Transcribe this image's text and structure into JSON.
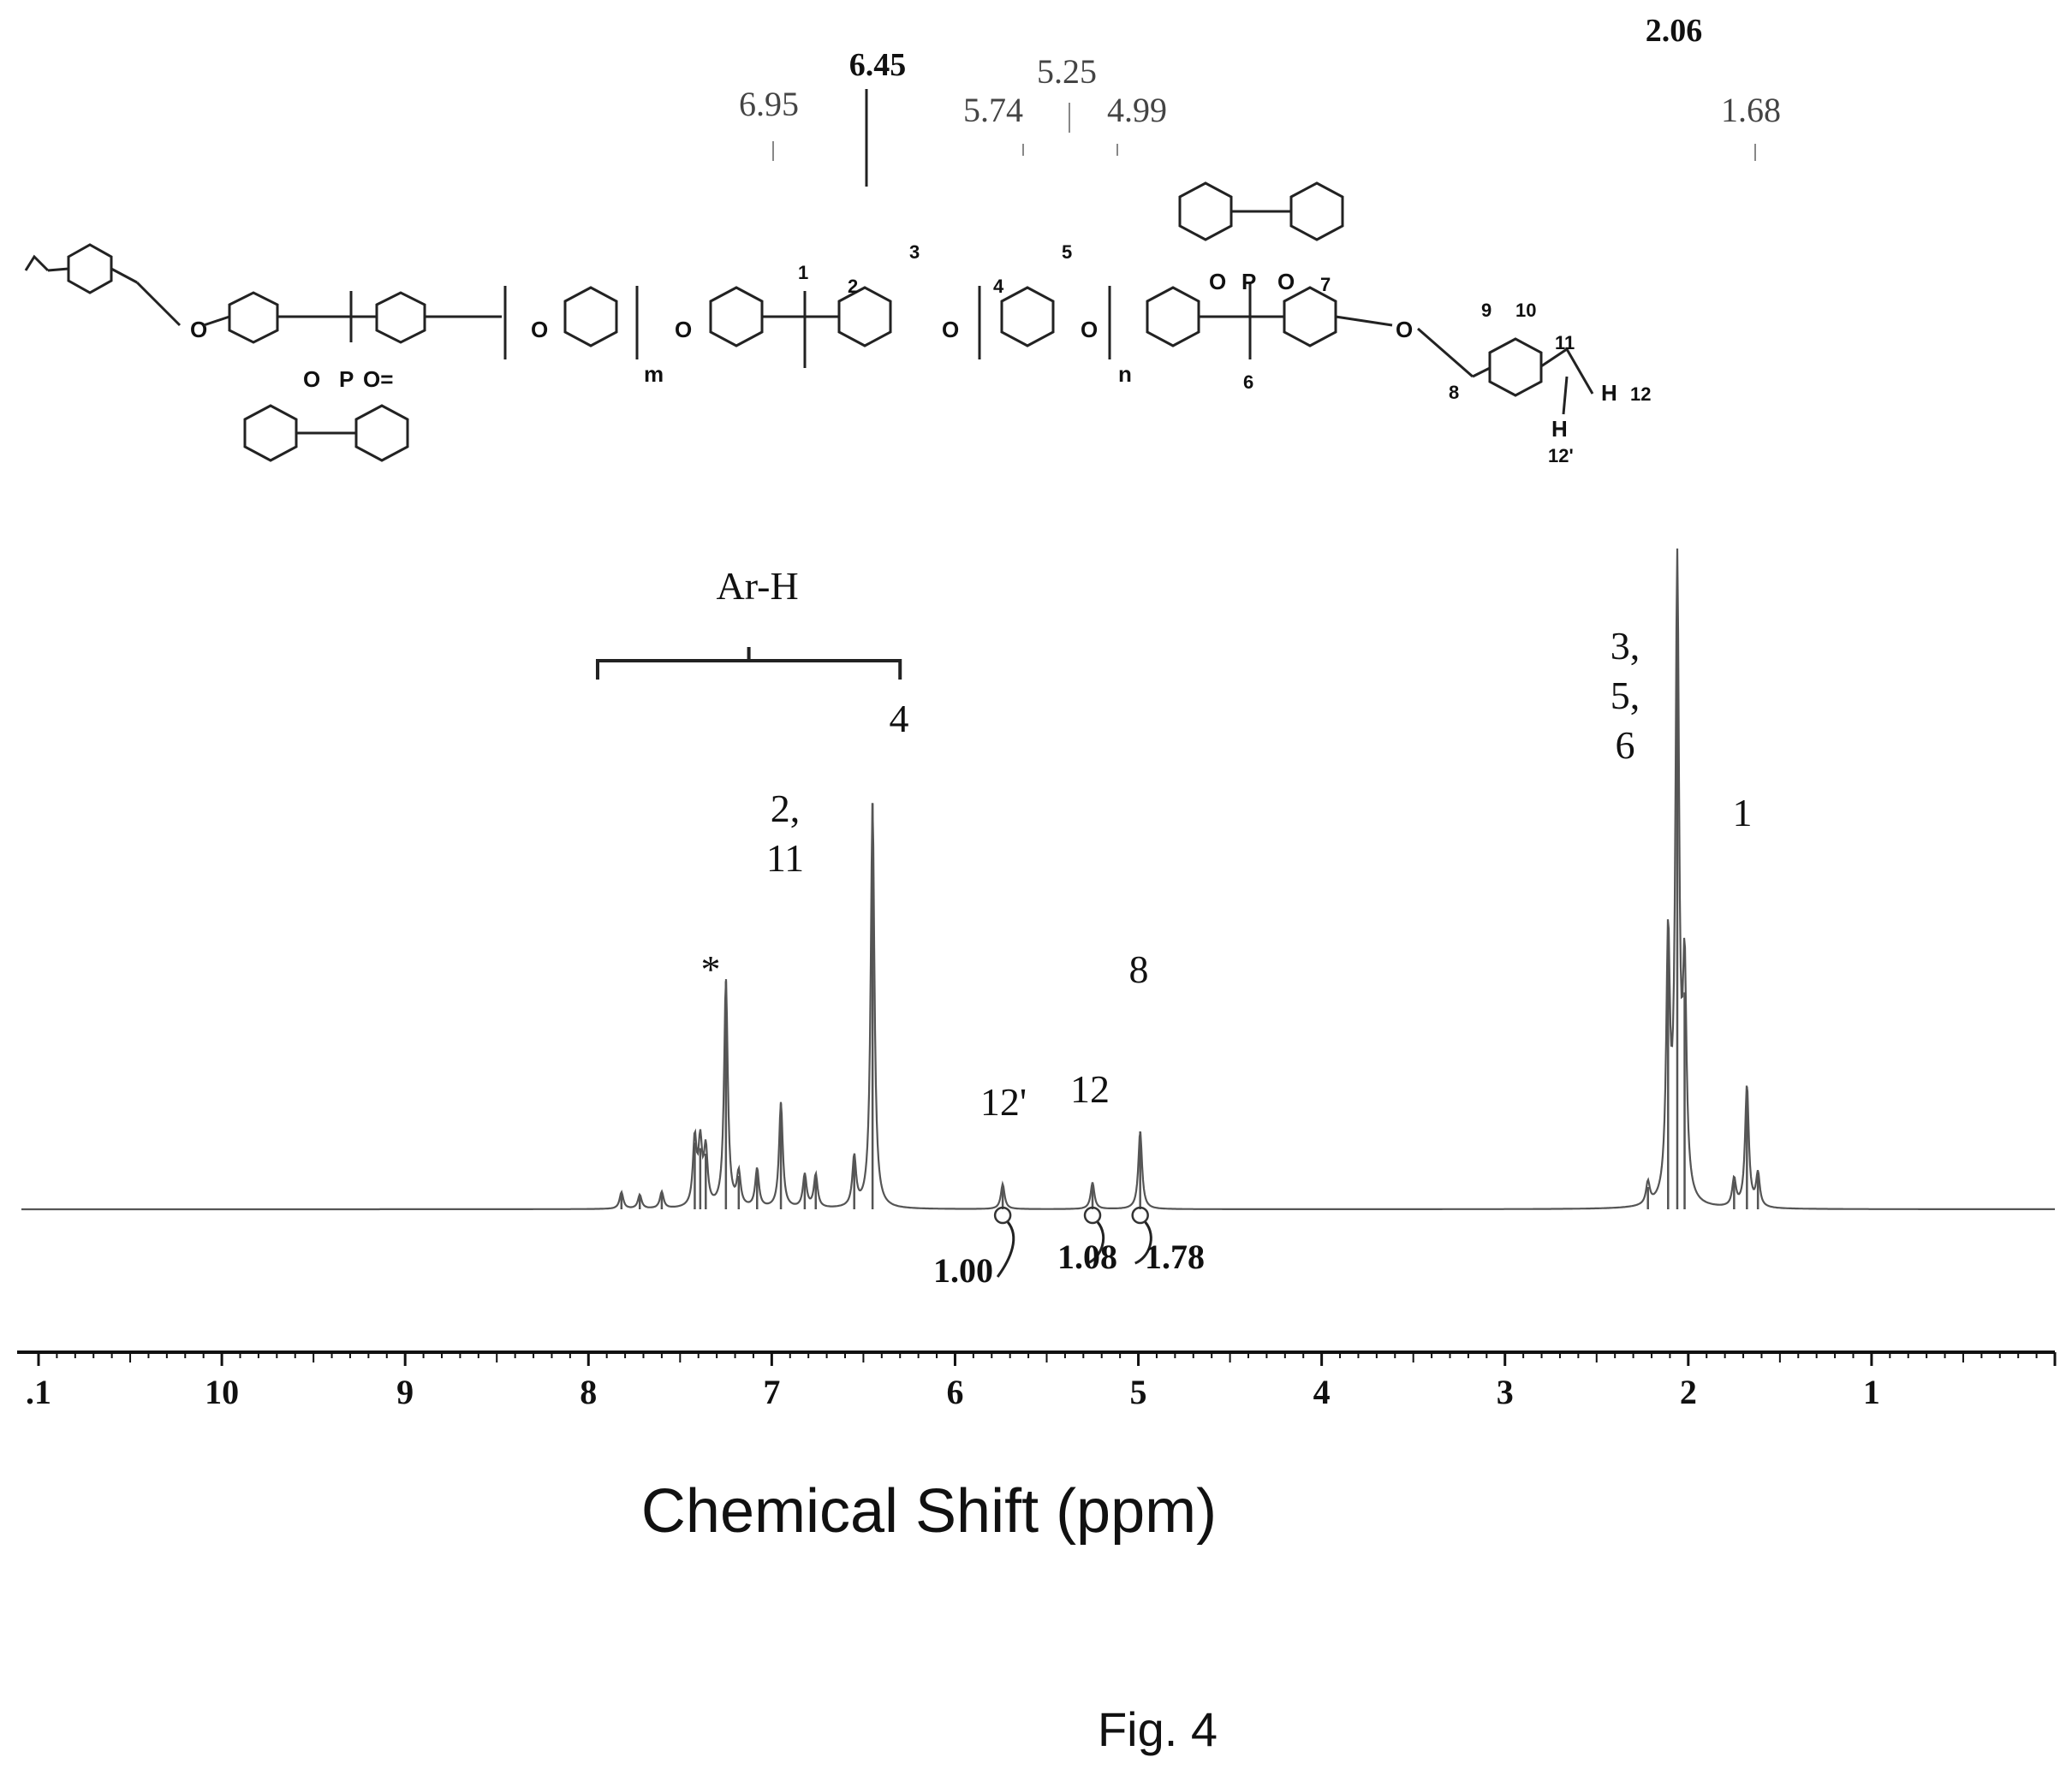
{
  "figure_label": "Fig. 4",
  "structure": {
    "position_labels": [
      "1",
      "2",
      "3",
      "4",
      "5",
      "6",
      "7",
      "8",
      "9",
      "10",
      "11",
      "12",
      "12'"
    ],
    "atom_labels": {
      "oxygen": "O",
      "phosphorus": "P",
      "hydrogen": "H",
      "carbonyl": "O=",
      "repeat_m": "m",
      "repeat_n": "n"
    }
  },
  "colors": {
    "spectrum": "#555555",
    "axis": "#111111",
    "text": "#111111"
  },
  "chart_data": {
    "type": "line",
    "xlabel": "Chemical Shift (ppm)",
    "x_reversed": true,
    "xlim": [
      11,
      0
    ],
    "x_ticks": [
      11,
      10,
      9,
      8,
      7,
      6,
      5,
      4,
      3,
      2,
      1
    ],
    "x_tick_labels": [
      ".1",
      "10",
      "9",
      "8",
      "7",
      "6",
      "5",
      "4",
      "3",
      "2",
      "1"
    ],
    "peak_top_labels": [
      {
        "ppm": 6.95,
        "label": "6.95",
        "bold": false
      },
      {
        "ppm": 6.45,
        "label": "6.45",
        "bold": true
      },
      {
        "ppm": 5.74,
        "label": "5.74",
        "bold": false
      },
      {
        "ppm": 5.25,
        "label": "5.25",
        "bold": false
      },
      {
        "ppm": 4.99,
        "label": "4.99",
        "bold": false
      },
      {
        "ppm": 2.06,
        "label": "2.06",
        "bold": true
      },
      {
        "ppm": 1.68,
        "label": "1.68",
        "bold": false
      }
    ],
    "assignments": [
      {
        "ppm": 7.25,
        "label": "*"
      },
      {
        "ppm": 6.95,
        "label": "2,\n11"
      },
      {
        "ppm": 6.3,
        "label": "4"
      },
      {
        "ppm": 5.74,
        "label": "12'"
      },
      {
        "ppm": 5.25,
        "label": "12"
      },
      {
        "ppm": 4.99,
        "label": "8"
      },
      {
        "ppm": 2.3,
        "label": "3,\n5,\n6"
      },
      {
        "ppm": 1.68,
        "label": "1"
      }
    ],
    "region_label": {
      "label": "Ar-H",
      "from_ppm": 7.95,
      "to_ppm": 6.3
    },
    "integrals": [
      {
        "ppm": 5.74,
        "label": "1.00"
      },
      {
        "ppm": 5.25,
        "label": "1.08"
      },
      {
        "ppm": 4.99,
        "label": "1.78"
      }
    ],
    "peaks": [
      {
        "ppm": 7.82,
        "height": 0.03
      },
      {
        "ppm": 7.72,
        "height": 0.025
      },
      {
        "ppm": 7.6,
        "height": 0.03
      },
      {
        "ppm": 7.42,
        "height": 0.12
      },
      {
        "ppm": 7.39,
        "height": 0.11
      },
      {
        "ppm": 7.36,
        "height": 0.1
      },
      {
        "ppm": 7.25,
        "height": 0.41
      },
      {
        "ppm": 7.18,
        "height": 0.06
      },
      {
        "ppm": 7.08,
        "height": 0.07
      },
      {
        "ppm": 6.95,
        "height": 0.19
      },
      {
        "ppm": 6.82,
        "height": 0.06
      },
      {
        "ppm": 6.76,
        "height": 0.06
      },
      {
        "ppm": 6.55,
        "height": 0.09
      },
      {
        "ppm": 6.45,
        "height": 0.73
      },
      {
        "ppm": 5.74,
        "height": 0.045
      },
      {
        "ppm": 5.25,
        "height": 0.048
      },
      {
        "ppm": 4.99,
        "height": 0.14
      },
      {
        "ppm": 2.22,
        "height": 0.04
      },
      {
        "ppm": 2.11,
        "height": 0.46
      },
      {
        "ppm": 2.06,
        "height": 1.13
      },
      {
        "ppm": 2.02,
        "height": 0.39
      },
      {
        "ppm": 1.75,
        "height": 0.05
      },
      {
        "ppm": 1.68,
        "height": 0.22
      },
      {
        "ppm": 1.62,
        "height": 0.06
      }
    ]
  }
}
